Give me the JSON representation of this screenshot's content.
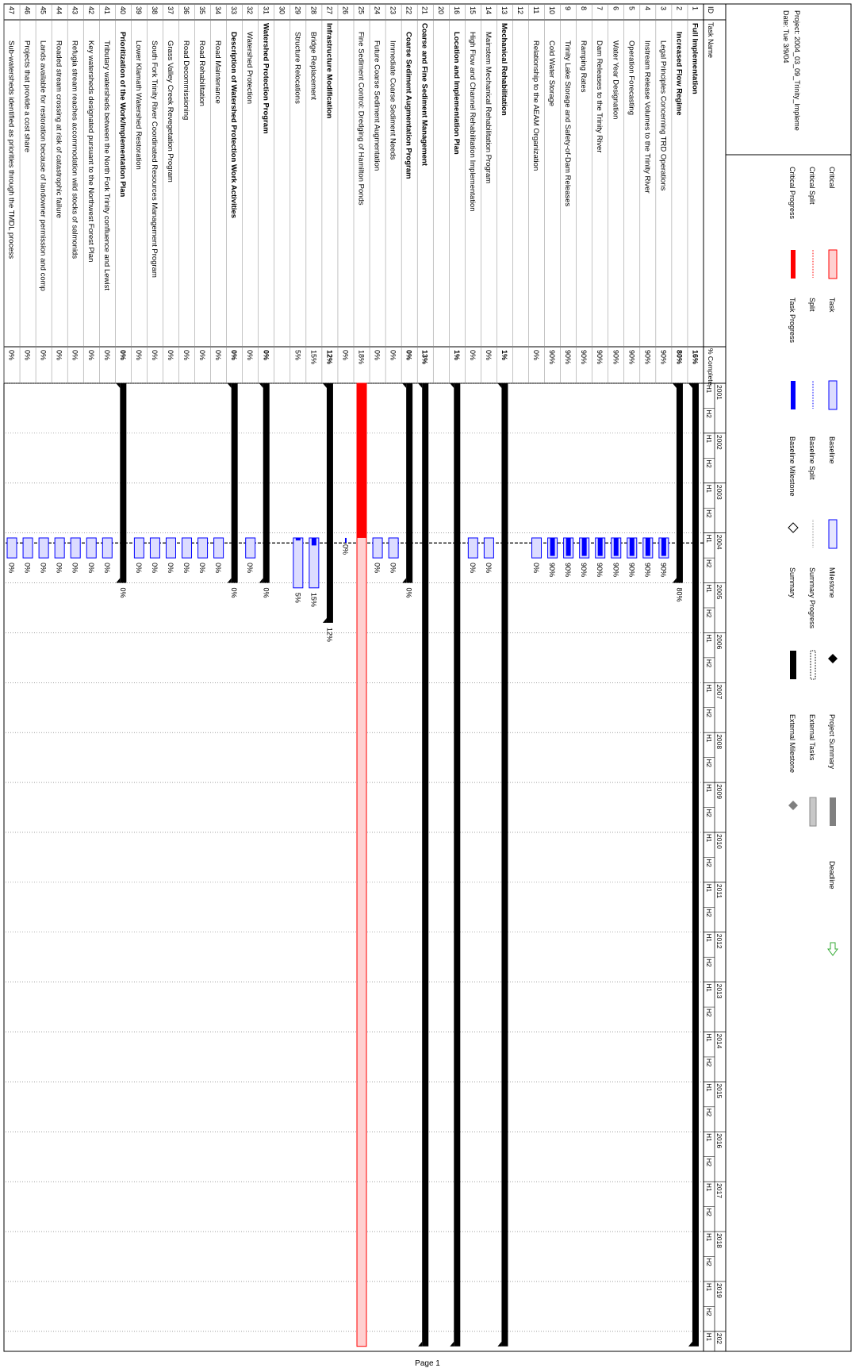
{
  "page": {
    "footer": "Page 1"
  },
  "columns": {
    "id": "ID",
    "name": "Task Name",
    "pct": "% Complete"
  },
  "timeline": {
    "years": [
      "2001",
      "2002",
      "2003",
      "2004",
      "2005",
      "2006",
      "2007",
      "2008",
      "2009",
      "2010",
      "2011",
      "2012",
      "2013",
      "2014",
      "2015",
      "2016",
      "2017",
      "2018",
      "2019",
      "202"
    ],
    "halves": [
      "H1",
      "H2"
    ]
  },
  "tasks": [
    {
      "id": "1",
      "name": "Full Implementation",
      "pct": "16%",
      "label": "",
      "bold": true,
      "indent": 0,
      "type": "summary",
      "start": 2001.0,
      "end": 2020.3,
      "baseline": false
    },
    {
      "id": "2",
      "name": "Increased Flow Regime",
      "pct": "80%",
      "label": "80%",
      "bold": true,
      "indent": 1,
      "type": "summary",
      "start": 2001.0,
      "end": 2005.0,
      "baseline": false
    },
    {
      "id": "3",
      "name": "Legal Principles Concerning TRD Operations",
      "pct": "90%",
      "label": "90%",
      "bold": false,
      "indent": 2,
      "type": "task",
      "start": 2004.1,
      "end": 2004.5,
      "progress": 0.9,
      "baseline": true
    },
    {
      "id": "4",
      "name": "Instream Release Volumes to the Trinity River",
      "pct": "90%",
      "label": "90%",
      "bold": false,
      "indent": 2,
      "type": "task",
      "start": 2004.1,
      "end": 2004.5,
      "progress": 0.9,
      "baseline": true
    },
    {
      "id": "5",
      "name": "Operation Forecasting",
      "pct": "90%",
      "label": "90%",
      "bold": false,
      "indent": 2,
      "type": "task",
      "start": 2004.1,
      "end": 2004.5,
      "progress": 0.9,
      "baseline": true
    },
    {
      "id": "6",
      "name": "Water Year Designation",
      "pct": "90%",
      "label": "90%",
      "bold": false,
      "indent": 2,
      "type": "task",
      "start": 2004.1,
      "end": 2004.5,
      "progress": 0.9,
      "baseline": true
    },
    {
      "id": "7",
      "name": "Dam Releases to the Trinity River",
      "pct": "90%",
      "label": "90%",
      "bold": false,
      "indent": 2,
      "type": "task",
      "start": 2004.1,
      "end": 2004.5,
      "progress": 0.9,
      "baseline": true
    },
    {
      "id": "8",
      "name": "Ramping Rates",
      "pct": "90%",
      "label": "90%",
      "bold": false,
      "indent": 2,
      "type": "task",
      "start": 2004.1,
      "end": 2004.5,
      "progress": 0.9,
      "baseline": true
    },
    {
      "id": "9",
      "name": "Trinity Lake Storage and Safety-of-Dam Releases",
      "pct": "90%",
      "label": "90%",
      "bold": false,
      "indent": 2,
      "type": "task",
      "start": 2004.1,
      "end": 2004.5,
      "progress": 0.9,
      "baseline": true
    },
    {
      "id": "10",
      "name": "Cold Water Storage",
      "pct": "90%",
      "label": "90%",
      "bold": false,
      "indent": 2,
      "type": "task",
      "start": 2004.1,
      "end": 2004.5,
      "progress": 0.9,
      "baseline": true
    },
    {
      "id": "11",
      "name": "Relationship to the AEAM Organization",
      "pct": "0%",
      "label": "0%",
      "bold": false,
      "indent": 2,
      "type": "task",
      "start": 2004.1,
      "end": 2004.5,
      "progress": 0,
      "baseline": true
    },
    {
      "id": "12",
      "name": "",
      "pct": "",
      "label": "",
      "bold": false,
      "indent": 0,
      "type": "blank"
    },
    {
      "id": "13",
      "name": "Mechanical Rehabilitation",
      "pct": "1%",
      "label": "",
      "bold": true,
      "indent": 0,
      "type": "summary",
      "start": 2001.0,
      "end": 2020.3,
      "baseline": false
    },
    {
      "id": "14",
      "name": "Mainstem Mechanical Rehabilitation Program",
      "pct": "0%",
      "label": "0%",
      "bold": false,
      "indent": 1,
      "type": "task",
      "start": 2004.1,
      "end": 2004.5,
      "progress": 0,
      "baseline": true
    },
    {
      "id": "15",
      "name": "High Flow and Channel Rehabilitation Implementation",
      "pct": "0%",
      "label": "0%",
      "bold": false,
      "indent": 1,
      "type": "task",
      "start": 2004.1,
      "end": 2004.5,
      "progress": 0,
      "baseline": true
    },
    {
      "id": "16",
      "name": "Location and Implementation Plan",
      "pct": "1%",
      "label": "",
      "bold": true,
      "indent": 1,
      "type": "summary",
      "start": 2001.0,
      "end": 2020.3,
      "baseline": false
    },
    {
      "id": "20",
      "name": "",
      "pct": "",
      "label": "",
      "bold": false,
      "indent": 0,
      "type": "blank"
    },
    {
      "id": "21",
      "name": "Coarse and Fine Sediment Management",
      "pct": "13%",
      "label": "",
      "bold": true,
      "indent": 0,
      "type": "summary",
      "start": 2001.0,
      "end": 2020.3,
      "baseline": false
    },
    {
      "id": "22",
      "name": "Coarse Sediment Augmentation Program",
      "pct": "0%",
      "label": "0%",
      "bold": true,
      "indent": 1,
      "type": "summary",
      "start": 2001.0,
      "end": 2005.0,
      "baseline": false
    },
    {
      "id": "23",
      "name": "Immediate Coarse Sediment Needs",
      "pct": "0%",
      "label": "0%",
      "bold": false,
      "indent": 2,
      "type": "task",
      "start": 2004.1,
      "end": 2004.5,
      "progress": 0,
      "baseline": true
    },
    {
      "id": "24",
      "name": "Future Coarse Sediment Augmentation",
      "pct": "0%",
      "label": "0%",
      "bold": false,
      "indent": 2,
      "type": "task",
      "start": 2004.1,
      "end": 2004.5,
      "progress": 0,
      "baseline": true
    },
    {
      "id": "25",
      "name": "Fine Sediment Control: Dredging of Hamilton Ponds",
      "pct": "18%",
      "label": "",
      "bold": false,
      "indent": 1,
      "type": "critical",
      "start": 2001.0,
      "end": 2020.3,
      "progress": 0.18,
      "baseline": false
    },
    {
      "id": "26",
      "name": "",
      "pct": "0%",
      "label": "0%",
      "bold": false,
      "indent": 0,
      "type": "milestone-task",
      "start": 2004.1,
      "end": 2004.1,
      "progress": 0,
      "baseline": false
    },
    {
      "id": "27",
      "name": "Infrastructure Modification",
      "pct": "12%",
      "label": "12%",
      "bold": true,
      "indent": 0,
      "type": "summary",
      "start": 2001.0,
      "end": 2005.8,
      "baseline": false
    },
    {
      "id": "28",
      "name": "Bridge Replacement",
      "pct": "15%",
      "label": "15%",
      "bold": false,
      "indent": 1,
      "type": "task",
      "start": 2004.1,
      "end": 2005.1,
      "progress": 0.15,
      "baseline": true
    },
    {
      "id": "29",
      "name": "Structure Relocations",
      "pct": "5%",
      "label": "5%",
      "bold": false,
      "indent": 1,
      "type": "task",
      "start": 2004.1,
      "end": 2005.1,
      "progress": 0.05,
      "baseline": true
    },
    {
      "id": "30",
      "name": "",
      "pct": "",
      "label": "",
      "bold": false,
      "indent": 0,
      "type": "blank"
    },
    {
      "id": "31",
      "name": "Watershed Protection Program",
      "pct": "0%",
      "label": "0%",
      "bold": true,
      "indent": 0,
      "type": "summary",
      "start": 2001.0,
      "end": 2005.0,
      "baseline": false
    },
    {
      "id": "32",
      "name": "Watershed Protection",
      "pct": "0%",
      "label": "0%",
      "bold": false,
      "indent": 1,
      "type": "task",
      "start": 2004.1,
      "end": 2004.5,
      "progress": 0,
      "baseline": true
    },
    {
      "id": "33",
      "name": "Description of Watershed Protection Work Activities",
      "pct": "0%",
      "label": "0%",
      "bold": true,
      "indent": 1,
      "type": "summary",
      "start": 2001.0,
      "end": 2005.0,
      "baseline": false
    },
    {
      "id": "34",
      "name": "Road Maintenance",
      "pct": "0%",
      "label": "0%",
      "bold": false,
      "indent": 2,
      "type": "task",
      "start": 2004.1,
      "end": 2004.5,
      "progress": 0,
      "baseline": true
    },
    {
      "id": "35",
      "name": "Road Rehabilitation",
      "pct": "0%",
      "label": "0%",
      "bold": false,
      "indent": 2,
      "type": "task",
      "start": 2004.1,
      "end": 2004.5,
      "progress": 0,
      "baseline": true
    },
    {
      "id": "36",
      "name": "Road Decommissioning",
      "pct": "0%",
      "label": "0%",
      "bold": false,
      "indent": 2,
      "type": "task",
      "start": 2004.1,
      "end": 2004.5,
      "progress": 0,
      "baseline": true
    },
    {
      "id": "37",
      "name": "Grass Valley Creek Revegetation Program",
      "pct": "0%",
      "label": "0%",
      "bold": false,
      "indent": 2,
      "type": "task",
      "start": 2004.1,
      "end": 2004.5,
      "progress": 0,
      "baseline": true
    },
    {
      "id": "38",
      "name": "South Fork Trinity River Coordinated Resources Management Program",
      "pct": "0%",
      "label": "0%",
      "bold": false,
      "indent": 2,
      "type": "task",
      "start": 2004.1,
      "end": 2004.5,
      "progress": 0,
      "baseline": true
    },
    {
      "id": "39",
      "name": "Lower Klamath Watershed Restoration",
      "pct": "0%",
      "label": "0%",
      "bold": false,
      "indent": 2,
      "type": "task",
      "start": 2004.1,
      "end": 2004.5,
      "progress": 0,
      "baseline": true
    },
    {
      "id": "40",
      "name": "Prioritization of the Work/Implementation Plan",
      "pct": "0%",
      "label": "0%",
      "bold": true,
      "indent": 1,
      "type": "summary",
      "start": 2001.0,
      "end": 2005.0,
      "baseline": false
    },
    {
      "id": "41",
      "name": "Tributary watersheds between the North Fork Trinity confluence and Lewist",
      "pct": "0%",
      "label": "0%",
      "bold": false,
      "indent": 2,
      "type": "task",
      "start": 2004.1,
      "end": 2004.5,
      "progress": 0,
      "baseline": true
    },
    {
      "id": "42",
      "name": "Key watersheds designated pursuant to the Northwest Forest Plan",
      "pct": "0%",
      "label": "0%",
      "bold": false,
      "indent": 2,
      "type": "task",
      "start": 2004.1,
      "end": 2004.5,
      "progress": 0,
      "baseline": true
    },
    {
      "id": "43",
      "name": "Refugia stream reaches accommodation wild stocks of salmonids",
      "pct": "0%",
      "label": "0%",
      "bold": false,
      "indent": 2,
      "type": "task",
      "start": 2004.1,
      "end": 2004.5,
      "progress": 0,
      "baseline": true
    },
    {
      "id": "44",
      "name": "Roaded stream crossing at risk of catastrophic failure",
      "pct": "0%",
      "label": "0%",
      "bold": false,
      "indent": 2,
      "type": "task",
      "start": 2004.1,
      "end": 2004.5,
      "progress": 0,
      "baseline": true
    },
    {
      "id": "45",
      "name": "Lands available for restoration because of landowner permission and comp",
      "pct": "0%",
      "label": "0%",
      "bold": false,
      "indent": 2,
      "type": "task",
      "start": 2004.1,
      "end": 2004.5,
      "progress": 0,
      "baseline": true
    },
    {
      "id": "46",
      "name": "Projects that provide a cost share",
      "pct": "0%",
      "label": "0%",
      "bold": false,
      "indent": 2,
      "type": "task",
      "start": 2004.1,
      "end": 2004.5,
      "progress": 0,
      "baseline": true
    },
    {
      "id": "47",
      "name": "Sub-watersheds identified as priorities through the TMDL process",
      "pct": "0%",
      "label": "0%",
      "bold": false,
      "indent": 2,
      "type": "task",
      "start": 2004.1,
      "end": 2004.5,
      "progress": 0,
      "baseline": true
    }
  ],
  "legend": {
    "project": "Project: 2004_03_09_Trinity_Impleme",
    "date": "Date: Tue 3/9/04",
    "items": [
      {
        "key": "critical",
        "label": "Critical"
      },
      {
        "key": "critical-split",
        "label": "Critical Split"
      },
      {
        "key": "critical-progress",
        "label": "Critical Progress"
      },
      {
        "key": "task",
        "label": "Task"
      },
      {
        "key": "split",
        "label": "Split"
      },
      {
        "key": "task-progress",
        "label": "Task Progress"
      },
      {
        "key": "baseline",
        "label": "Baseline"
      },
      {
        "key": "baseline-split",
        "label": "Baseline Split"
      },
      {
        "key": "baseline-milestone",
        "label": "Baseline Milestone"
      },
      {
        "key": "milestone",
        "label": "Milestone"
      },
      {
        "key": "summary-progress",
        "label": "Summary Progress"
      },
      {
        "key": "summary",
        "label": "Summary"
      },
      {
        "key": "project-summary",
        "label": "Project Summary"
      },
      {
        "key": "external-tasks",
        "label": "External Tasks"
      },
      {
        "key": "external-milestone",
        "label": "External Milestone"
      },
      {
        "key": "deadline",
        "label": "Deadline"
      }
    ]
  },
  "colors": {
    "critical": "#ff0000",
    "critical-fill": "#ffd0d0",
    "task": "#0000ff",
    "task-fill": "#dcdcff",
    "summary": "#000000",
    "deadline": "#33aa33"
  }
}
